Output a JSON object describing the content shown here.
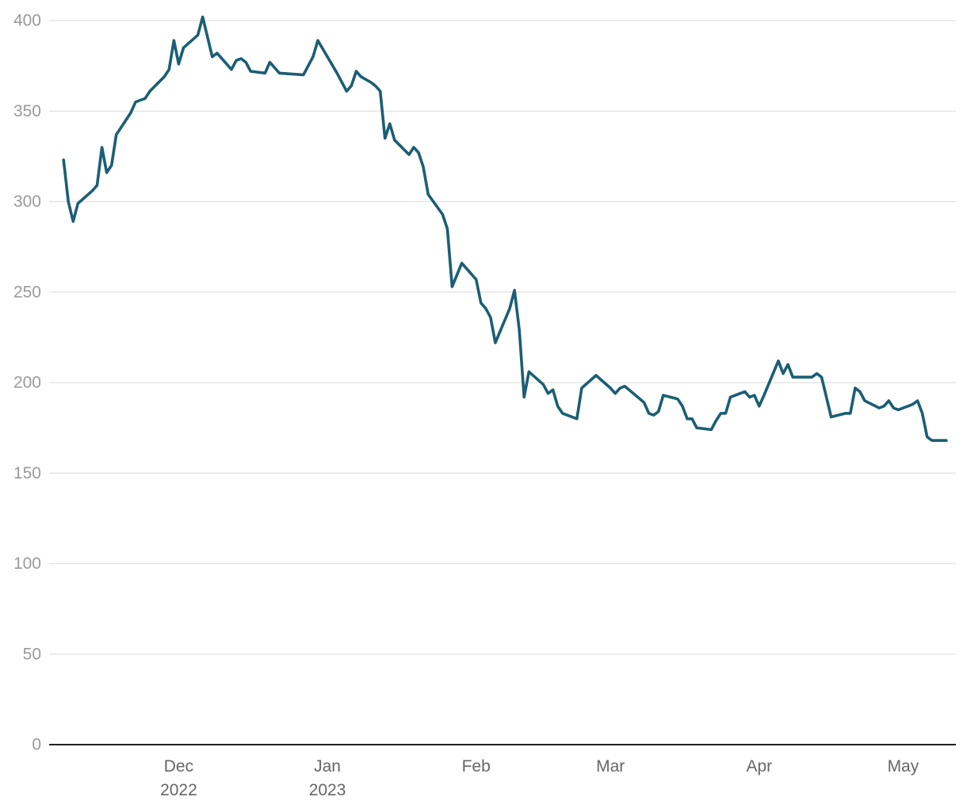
{
  "chart_data": {
    "type": "line",
    "title": "",
    "xlabel": "",
    "ylabel": "",
    "ylim": [
      0,
      400
    ],
    "y_ticks": [
      0,
      50,
      100,
      150,
      200,
      250,
      300,
      350,
      400
    ],
    "x_range": [
      "2022-11-04",
      "2023-05-12"
    ],
    "x_ticks": [
      {
        "date": "2022-12-01",
        "label": "Dec",
        "sublabel": "2022"
      },
      {
        "date": "2023-01-01",
        "label": "Jan",
        "sublabel": "2023"
      },
      {
        "date": "2023-02-01",
        "label": "Feb",
        "sublabel": ""
      },
      {
        "date": "2023-03-01",
        "label": "Mar",
        "sublabel": ""
      },
      {
        "date": "2023-04-01",
        "label": "Apr",
        "sublabel": ""
      },
      {
        "date": "2023-05-01",
        "label": "May",
        "sublabel": ""
      }
    ],
    "grid": true,
    "series": [
      {
        "name": "",
        "color": "#1b5e75",
        "points": [
          [
            "2022-11-07",
            323
          ],
          [
            "2022-11-08",
            300
          ],
          [
            "2022-11-09",
            289
          ],
          [
            "2022-11-10",
            299
          ],
          [
            "2022-11-13",
            306
          ],
          [
            "2022-11-14",
            309
          ],
          [
            "2022-11-15",
            330
          ],
          [
            "2022-11-16",
            316
          ],
          [
            "2022-11-17",
            320
          ],
          [
            "2022-11-18",
            337
          ],
          [
            "2022-11-21",
            349
          ],
          [
            "2022-11-22",
            355
          ],
          [
            "2022-11-23",
            356
          ],
          [
            "2022-11-24",
            357
          ],
          [
            "2022-11-25",
            361
          ],
          [
            "2022-11-28",
            369
          ],
          [
            "2022-11-29",
            373
          ],
          [
            "2022-11-30",
            389
          ],
          [
            "2022-12-01",
            376
          ],
          [
            "2022-12-02",
            385
          ],
          [
            "2022-12-05",
            392
          ],
          [
            "2022-12-06",
            402
          ],
          [
            "2022-12-08",
            380
          ],
          [
            "2022-12-09",
            382
          ],
          [
            "2022-12-12",
            373
          ],
          [
            "2022-12-13",
            378
          ],
          [
            "2022-12-14",
            379
          ],
          [
            "2022-12-15",
            377
          ],
          [
            "2022-12-16",
            372
          ],
          [
            "2022-12-19",
            371
          ],
          [
            "2022-12-20",
            377
          ],
          [
            "2022-12-22",
            371
          ],
          [
            "2022-12-27",
            370
          ],
          [
            "2022-12-29",
            380
          ],
          [
            "2022-12-30",
            389
          ],
          [
            "2023-01-03",
            371
          ],
          [
            "2023-01-05",
            361
          ],
          [
            "2023-01-06",
            364
          ],
          [
            "2023-01-07",
            372
          ],
          [
            "2023-01-08",
            369
          ],
          [
            "2023-01-10",
            366
          ],
          [
            "2023-01-11",
            364
          ],
          [
            "2023-01-12",
            361
          ],
          [
            "2023-01-13",
            335
          ],
          [
            "2023-01-14",
            343
          ],
          [
            "2023-01-15",
            334
          ],
          [
            "2023-01-18",
            326
          ],
          [
            "2023-01-19",
            330
          ],
          [
            "2023-01-20",
            327
          ],
          [
            "2023-01-21",
            319
          ],
          [
            "2023-01-22",
            304
          ],
          [
            "2023-01-25",
            293
          ],
          [
            "2023-01-26",
            285
          ],
          [
            "2023-01-27",
            253
          ],
          [
            "2023-01-29",
            266
          ],
          [
            "2023-02-01",
            257
          ],
          [
            "2023-02-02",
            244
          ],
          [
            "2023-02-03",
            241
          ],
          [
            "2023-02-04",
            236
          ],
          [
            "2023-02-05",
            222
          ],
          [
            "2023-02-08",
            241
          ],
          [
            "2023-02-09",
            251
          ],
          [
            "2023-02-10",
            229
          ],
          [
            "2023-02-11",
            192
          ],
          [
            "2023-02-12",
            206
          ],
          [
            "2023-02-15",
            199
          ],
          [
            "2023-02-16",
            194
          ],
          [
            "2023-02-17",
            196
          ],
          [
            "2023-02-18",
            187
          ],
          [
            "2023-02-19",
            183
          ],
          [
            "2023-02-22",
            180
          ],
          [
            "2023-02-23",
            197
          ],
          [
            "2023-02-26",
            204
          ],
          [
            "2023-03-01",
            197
          ],
          [
            "2023-03-02",
            194
          ],
          [
            "2023-03-03",
            197
          ],
          [
            "2023-03-04",
            198
          ],
          [
            "2023-03-08",
            189
          ],
          [
            "2023-03-09",
            183
          ],
          [
            "2023-03-10",
            182
          ],
          [
            "2023-03-11",
            184
          ],
          [
            "2023-03-12",
            193
          ],
          [
            "2023-03-15",
            191
          ],
          [
            "2023-03-16",
            187
          ],
          [
            "2023-03-17",
            180
          ],
          [
            "2023-03-18",
            180
          ],
          [
            "2023-03-19",
            175
          ],
          [
            "2023-03-22",
            174
          ],
          [
            "2023-03-23",
            179
          ],
          [
            "2023-03-24",
            183
          ],
          [
            "2023-03-25",
            183
          ],
          [
            "2023-03-26",
            192
          ],
          [
            "2023-03-29",
            195
          ],
          [
            "2023-03-30",
            192
          ],
          [
            "2023-03-31",
            193
          ],
          [
            "2023-04-01",
            187
          ],
          [
            "2023-04-02",
            193
          ],
          [
            "2023-04-05",
            212
          ],
          [
            "2023-04-06",
            205
          ],
          [
            "2023-04-07",
            210
          ],
          [
            "2023-04-08",
            203
          ],
          [
            "2023-04-12",
            203
          ],
          [
            "2023-04-13",
            205
          ],
          [
            "2023-04-14",
            203
          ],
          [
            "2023-04-15",
            192
          ],
          [
            "2023-04-16",
            181
          ],
          [
            "2023-04-19",
            183
          ],
          [
            "2023-04-20",
            183
          ],
          [
            "2023-04-21",
            197
          ],
          [
            "2023-04-22",
            195
          ],
          [
            "2023-04-23",
            190
          ],
          [
            "2023-04-26",
            186
          ],
          [
            "2023-04-27",
            187
          ],
          [
            "2023-04-28",
            190
          ],
          [
            "2023-04-29",
            186
          ],
          [
            "2023-04-30",
            185
          ],
          [
            "2023-05-03",
            188
          ],
          [
            "2023-05-04",
            190
          ],
          [
            "2023-05-05",
            183
          ],
          [
            "2023-05-06",
            170
          ],
          [
            "2023-05-07",
            168
          ],
          [
            "2023-05-10",
            168
          ]
        ]
      }
    ]
  }
}
